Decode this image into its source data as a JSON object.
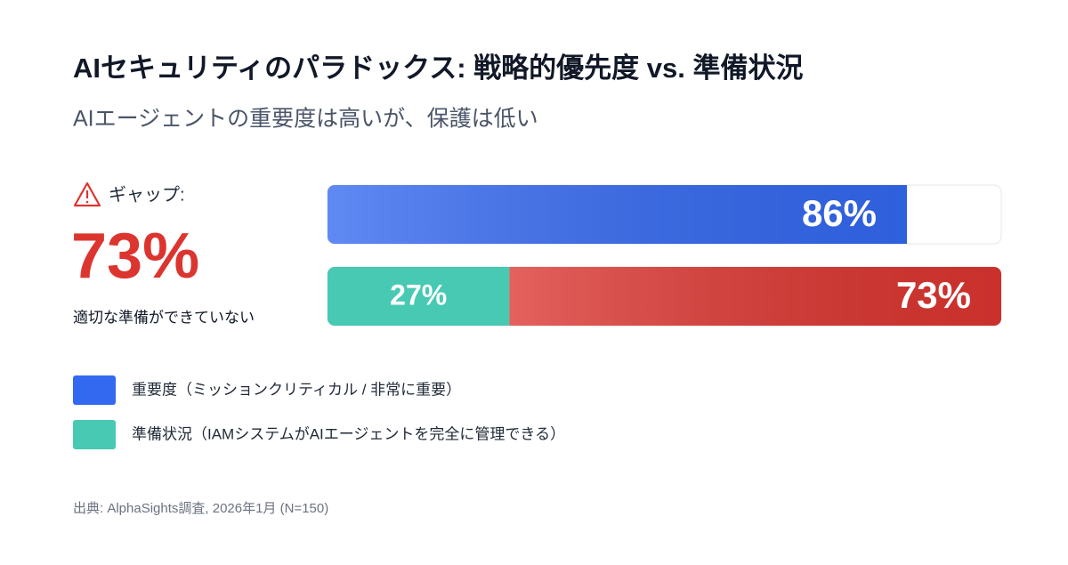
{
  "chart_data": {
    "type": "bar",
    "orientation": "horizontal",
    "title": "AIセキュリティのパラドックス: 戦略的優先度 vs. 準備状況",
    "subtitle": "AIエージェントの重要度は高いが、保護は低い",
    "xlim": [
      0,
      100
    ],
    "series": [
      {
        "name": "重要度（ミッションクリティカル / 非常に重要）",
        "color": "#3368f0",
        "values": [
          86
        ],
        "value_labels": [
          "86%"
        ]
      },
      {
        "name": "準備状況（IAMシステムがAIエージェントを完全に管理できる）",
        "color": "#47c9b3",
        "values": [
          27
        ],
        "value_labels": [
          "27%"
        ]
      }
    ],
    "gap": {
      "label": "ギャップ:",
      "value": 73,
      "value_label": "73%",
      "caption": "適切な準備ができていない",
      "color": "#dc3530"
    },
    "source": "出典: AlphaSights調査, 2026年1月 (N=150)"
  }
}
